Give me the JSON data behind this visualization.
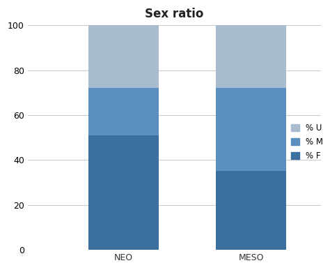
{
  "title": "Sex ratio",
  "categories": [
    "NEO",
    "MESO"
  ],
  "f_values": [
    51,
    35
  ],
  "m_values": [
    21,
    37
  ],
  "u_values": [
    28,
    28
  ],
  "color_f": "#3A6FA0",
  "color_m": "#5A8FBF",
  "color_u": "#A8BBCF",
  "ylim": [
    0,
    100
  ],
  "yticks": [
    0,
    20,
    40,
    60,
    80,
    100
  ],
  "legend_labels": [
    "% U",
    "% M",
    "% F"
  ],
  "title_fontsize": 12,
  "tick_fontsize": 9,
  "legend_fontsize": 8.5,
  "bar_width": 0.55,
  "xlim": [
    -0.45,
    1.85
  ]
}
